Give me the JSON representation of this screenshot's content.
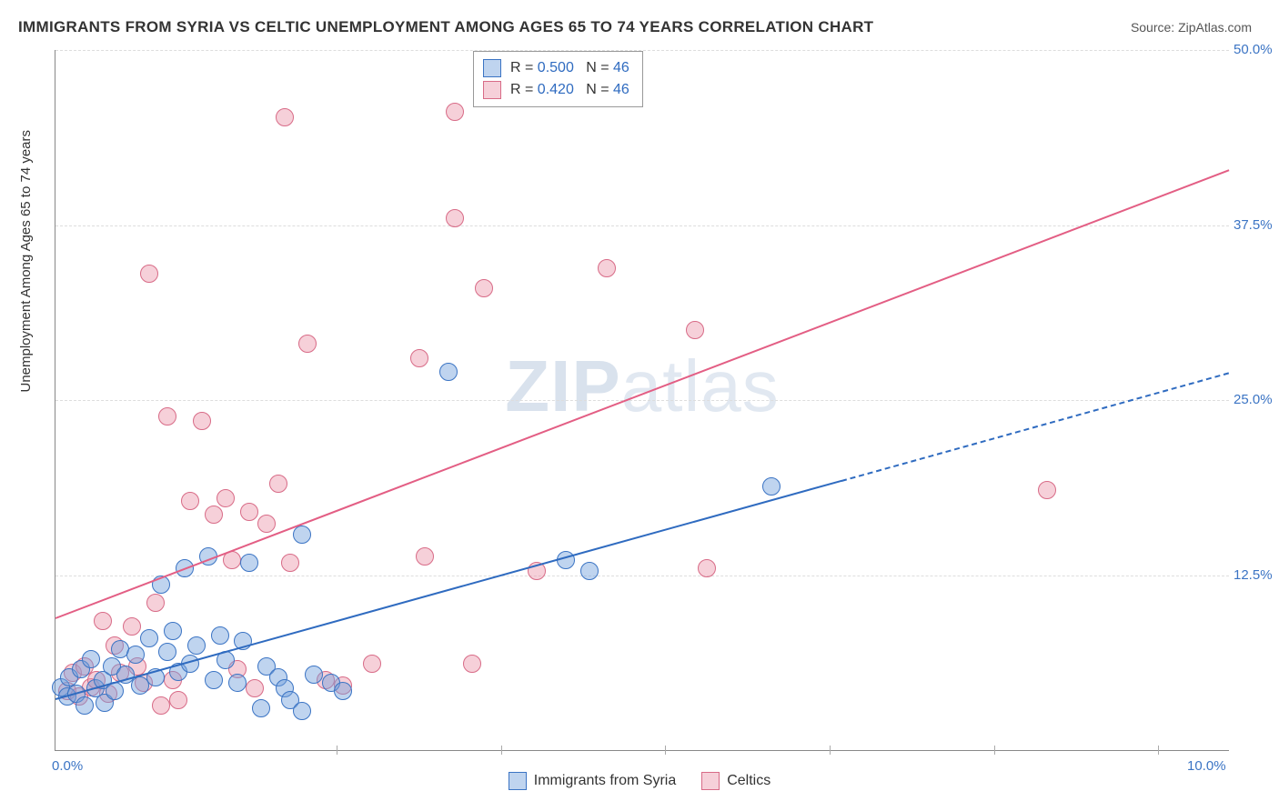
{
  "title": "IMMIGRANTS FROM SYRIA VS CELTIC UNEMPLOYMENT AMONG AGES 65 TO 74 YEARS CORRELATION CHART",
  "source": "Source: ZipAtlas.com",
  "ylabel": "Unemployment Among Ages 65 to 74 years",
  "watermark_bold": "ZIP",
  "watermark_rest": "atlas",
  "chart": {
    "type": "scatter-correlation",
    "background_color": "#ffffff",
    "grid_color": "#dddddd",
    "axis_color": "#888888",
    "tick_color": "#3b74c4",
    "xlim": [
      0.0,
      10.0
    ],
    "ylim": [
      0.0,
      50.0
    ],
    "yticks": [
      {
        "v": 12.5,
        "label": "12.5%"
      },
      {
        "v": 25.0,
        "label": "25.0%"
      },
      {
        "v": 37.5,
        "label": "37.5%"
      },
      {
        "v": 50.0,
        "label": "50.0%"
      }
    ],
    "xticks": [
      {
        "v": 0.0,
        "label": "0.0%"
      },
      {
        "v": 10.0,
        "label": "10.0%"
      }
    ],
    "x_inner_ticks": [
      2.4,
      3.8,
      5.2,
      6.6,
      8.0,
      9.4
    ],
    "point_radius": 10,
    "series": [
      {
        "name": "Immigrants from Syria",
        "R": "0.500",
        "N": "46",
        "point_fill": "rgba(112,160,220,0.45)",
        "point_stroke": "#3b74c4",
        "trend_color": "#2f6bc0",
        "trend_start": {
          "x": 0.0,
          "y": 3.7
        },
        "trend_solid_end": {
          "x": 6.7,
          "y": 19.3
        },
        "trend_dash_end": {
          "x": 10.0,
          "y": 27.0
        },
        "points": [
          {
            "x": 0.05,
            "y": 4.5
          },
          {
            "x": 0.1,
            "y": 3.8
          },
          {
            "x": 0.12,
            "y": 5.2
          },
          {
            "x": 0.18,
            "y": 4.0
          },
          {
            "x": 0.22,
            "y": 5.8
          },
          {
            "x": 0.25,
            "y": 3.2
          },
          {
            "x": 0.3,
            "y": 6.5
          },
          {
            "x": 0.34,
            "y": 4.4
          },
          {
            "x": 0.4,
            "y": 5.0
          },
          {
            "x": 0.42,
            "y": 3.4
          },
          {
            "x": 0.48,
            "y": 6.0
          },
          {
            "x": 0.5,
            "y": 4.2
          },
          {
            "x": 0.55,
            "y": 7.2
          },
          {
            "x": 0.6,
            "y": 5.4
          },
          {
            "x": 0.68,
            "y": 6.8
          },
          {
            "x": 0.72,
            "y": 4.6
          },
          {
            "x": 0.8,
            "y": 8.0
          },
          {
            "x": 0.85,
            "y": 5.2
          },
          {
            "x": 0.9,
            "y": 11.8
          },
          {
            "x": 0.95,
            "y": 7.0
          },
          {
            "x": 1.0,
            "y": 8.5
          },
          {
            "x": 1.05,
            "y": 5.6
          },
          {
            "x": 1.1,
            "y": 13.0
          },
          {
            "x": 1.15,
            "y": 6.2
          },
          {
            "x": 1.2,
            "y": 7.5
          },
          {
            "x": 1.3,
            "y": 13.8
          },
          {
            "x": 1.35,
            "y": 5.0
          },
          {
            "x": 1.4,
            "y": 8.2
          },
          {
            "x": 1.45,
            "y": 6.4
          },
          {
            "x": 1.55,
            "y": 4.8
          },
          {
            "x": 1.6,
            "y": 7.8
          },
          {
            "x": 1.65,
            "y": 13.4
          },
          {
            "x": 1.75,
            "y": 3.0
          },
          {
            "x": 1.8,
            "y": 6.0
          },
          {
            "x": 1.9,
            "y": 5.2
          },
          {
            "x": 1.95,
            "y": 4.4
          },
          {
            "x": 2.0,
            "y": 3.6
          },
          {
            "x": 2.1,
            "y": 2.8
          },
          {
            "x": 2.1,
            "y": 15.4
          },
          {
            "x": 2.2,
            "y": 5.4
          },
          {
            "x": 2.35,
            "y": 4.8
          },
          {
            "x": 2.45,
            "y": 4.2
          },
          {
            "x": 3.35,
            "y": 27.0
          },
          {
            "x": 4.35,
            "y": 13.6
          },
          {
            "x": 4.55,
            "y": 12.8
          },
          {
            "x": 6.1,
            "y": 18.8
          }
        ]
      },
      {
        "name": "Celtics",
        "R": "0.420",
        "N": "46",
        "point_fill": "rgba(235,150,170,0.45)",
        "point_stroke": "#d86b87",
        "trend_color": "#e35e84",
        "trend_start": {
          "x": 0.0,
          "y": 9.5
        },
        "trend_solid_end": {
          "x": 10.0,
          "y": 41.5
        },
        "trend_dash_end": null,
        "points": [
          {
            "x": 0.1,
            "y": 4.2
          },
          {
            "x": 0.15,
            "y": 5.5
          },
          {
            "x": 0.2,
            "y": 3.8
          },
          {
            "x": 0.25,
            "y": 6.0
          },
          {
            "x": 0.3,
            "y": 4.5
          },
          {
            "x": 0.35,
            "y": 5.0
          },
          {
            "x": 0.4,
            "y": 9.2
          },
          {
            "x": 0.45,
            "y": 4.0
          },
          {
            "x": 0.5,
            "y": 7.5
          },
          {
            "x": 0.55,
            "y": 5.5
          },
          {
            "x": 0.65,
            "y": 8.8
          },
          {
            "x": 0.7,
            "y": 6.0
          },
          {
            "x": 0.75,
            "y": 4.8
          },
          {
            "x": 0.8,
            "y": 34.0
          },
          {
            "x": 0.85,
            "y": 10.5
          },
          {
            "x": 0.9,
            "y": 3.2
          },
          {
            "x": 0.95,
            "y": 23.8
          },
          {
            "x": 1.0,
            "y": 5.0
          },
          {
            "x": 1.05,
            "y": 3.6
          },
          {
            "x": 1.15,
            "y": 17.8
          },
          {
            "x": 1.25,
            "y": 23.5
          },
          {
            "x": 1.35,
            "y": 16.8
          },
          {
            "x": 1.45,
            "y": 18.0
          },
          {
            "x": 1.5,
            "y": 13.6
          },
          {
            "x": 1.55,
            "y": 5.8
          },
          {
            "x": 1.65,
            "y": 17.0
          },
          {
            "x": 1.7,
            "y": 4.4
          },
          {
            "x": 1.8,
            "y": 16.2
          },
          {
            "x": 1.9,
            "y": 19.0
          },
          {
            "x": 1.95,
            "y": 45.2
          },
          {
            "x": 2.0,
            "y": 13.4
          },
          {
            "x": 2.15,
            "y": 29.0
          },
          {
            "x": 2.3,
            "y": 5.0
          },
          {
            "x": 2.45,
            "y": 4.6
          },
          {
            "x": 2.7,
            "y": 6.2
          },
          {
            "x": 3.1,
            "y": 28.0
          },
          {
            "x": 3.15,
            "y": 13.8
          },
          {
            "x": 3.4,
            "y": 45.6
          },
          {
            "x": 3.4,
            "y": 38.0
          },
          {
            "x": 3.55,
            "y": 6.2
          },
          {
            "x": 3.65,
            "y": 33.0
          },
          {
            "x": 4.1,
            "y": 12.8
          },
          {
            "x": 4.7,
            "y": 34.4
          },
          {
            "x": 5.45,
            "y": 30.0
          },
          {
            "x": 5.55,
            "y": 13.0
          },
          {
            "x": 8.45,
            "y": 18.6
          }
        ]
      }
    ]
  },
  "legend_top_labels": {
    "R": "R =",
    "N": "N ="
  },
  "legend_bottom": [
    {
      "label": "Immigrants from Syria",
      "fill": "rgba(112,160,220,0.45)",
      "stroke": "#3b74c4"
    },
    {
      "label": "Celtics",
      "fill": "rgba(235,150,170,0.45)",
      "stroke": "#d86b87"
    }
  ]
}
